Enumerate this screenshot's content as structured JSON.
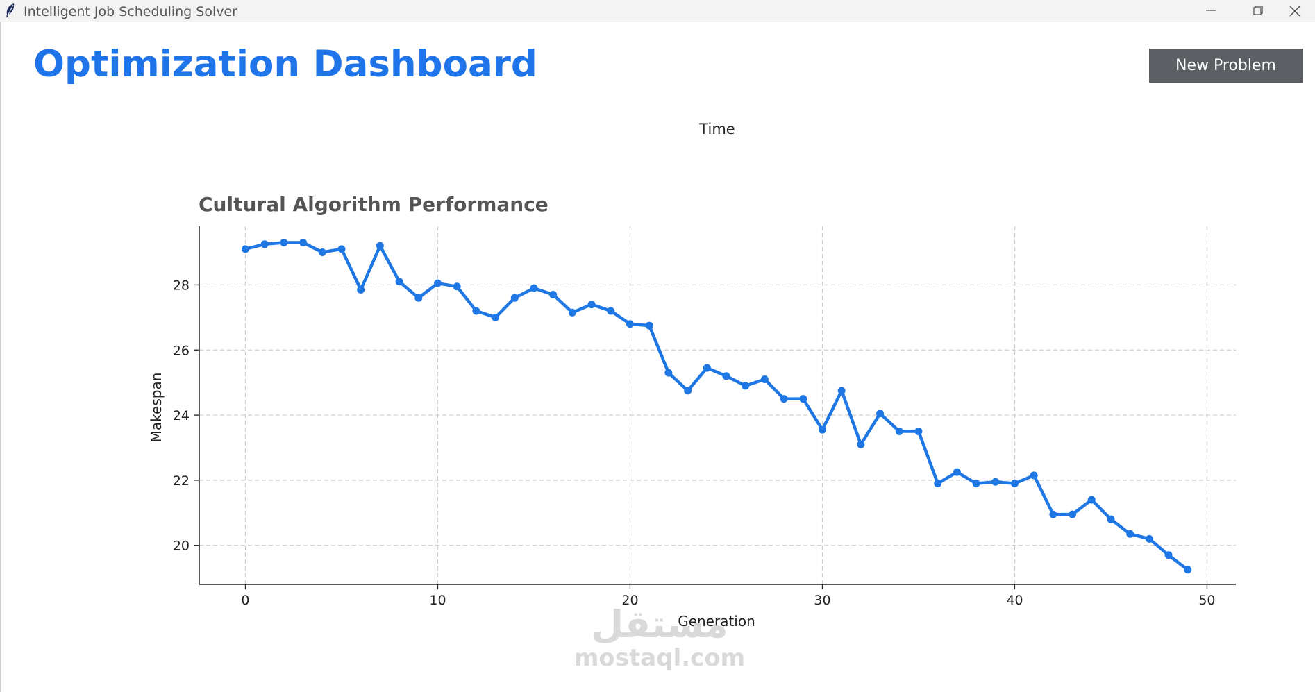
{
  "window": {
    "title": "Intelligent Job Scheduling Solver",
    "icon": "feather-icon"
  },
  "header": {
    "title": "Optimization Dashboard",
    "new_problem_label": "New Problem"
  },
  "time_label": "Time",
  "colors": {
    "accent": "#1e74e8",
    "button_bg": "#5b5f63",
    "line": "#1f77e4",
    "grid": "#cccccc",
    "chart_title": "#555555"
  },
  "watermark": {
    "arabic": "مستقل",
    "latin": "mostaql.com"
  },
  "chart_data": {
    "type": "line",
    "title": "Cultural Algorithm Performance",
    "xlabel": "Generation",
    "ylabel": "Makespan",
    "xlim": [
      -2.4,
      51.5
    ],
    "ylim": [
      18.8,
      29.8
    ],
    "xticks": [
      0,
      10,
      20,
      30,
      40,
      50
    ],
    "yticks": [
      20,
      22,
      24,
      26,
      28
    ],
    "grid": true,
    "grid_style": "dashed",
    "marker": "circle",
    "x": [
      0,
      1,
      2,
      3,
      4,
      5,
      6,
      7,
      8,
      9,
      10,
      11,
      12,
      13,
      14,
      15,
      16,
      17,
      18,
      19,
      20,
      21,
      22,
      23,
      24,
      25,
      26,
      27,
      28,
      29,
      30,
      31,
      32,
      33,
      34,
      35,
      36,
      37,
      38,
      39,
      40,
      41,
      42,
      43,
      44,
      45,
      46,
      47,
      48,
      49
    ],
    "y": [
      29.1,
      29.25,
      29.3,
      29.3,
      29.0,
      29.1,
      27.85,
      29.2,
      28.1,
      27.6,
      28.05,
      27.95,
      27.2,
      27.0,
      27.6,
      27.9,
      27.7,
      27.15,
      27.4,
      27.2,
      26.8,
      26.75,
      25.3,
      24.75,
      25.45,
      25.2,
      24.9,
      25.1,
      24.5,
      24.5,
      23.55,
      24.75,
      23.1,
      24.05,
      23.5,
      23.5,
      21.9,
      22.25,
      21.9,
      21.95,
      21.9,
      22.15,
      20.95,
      20.95,
      21.4,
      20.8,
      20.35,
      20.2,
      19.7,
      19.25
    ]
  }
}
